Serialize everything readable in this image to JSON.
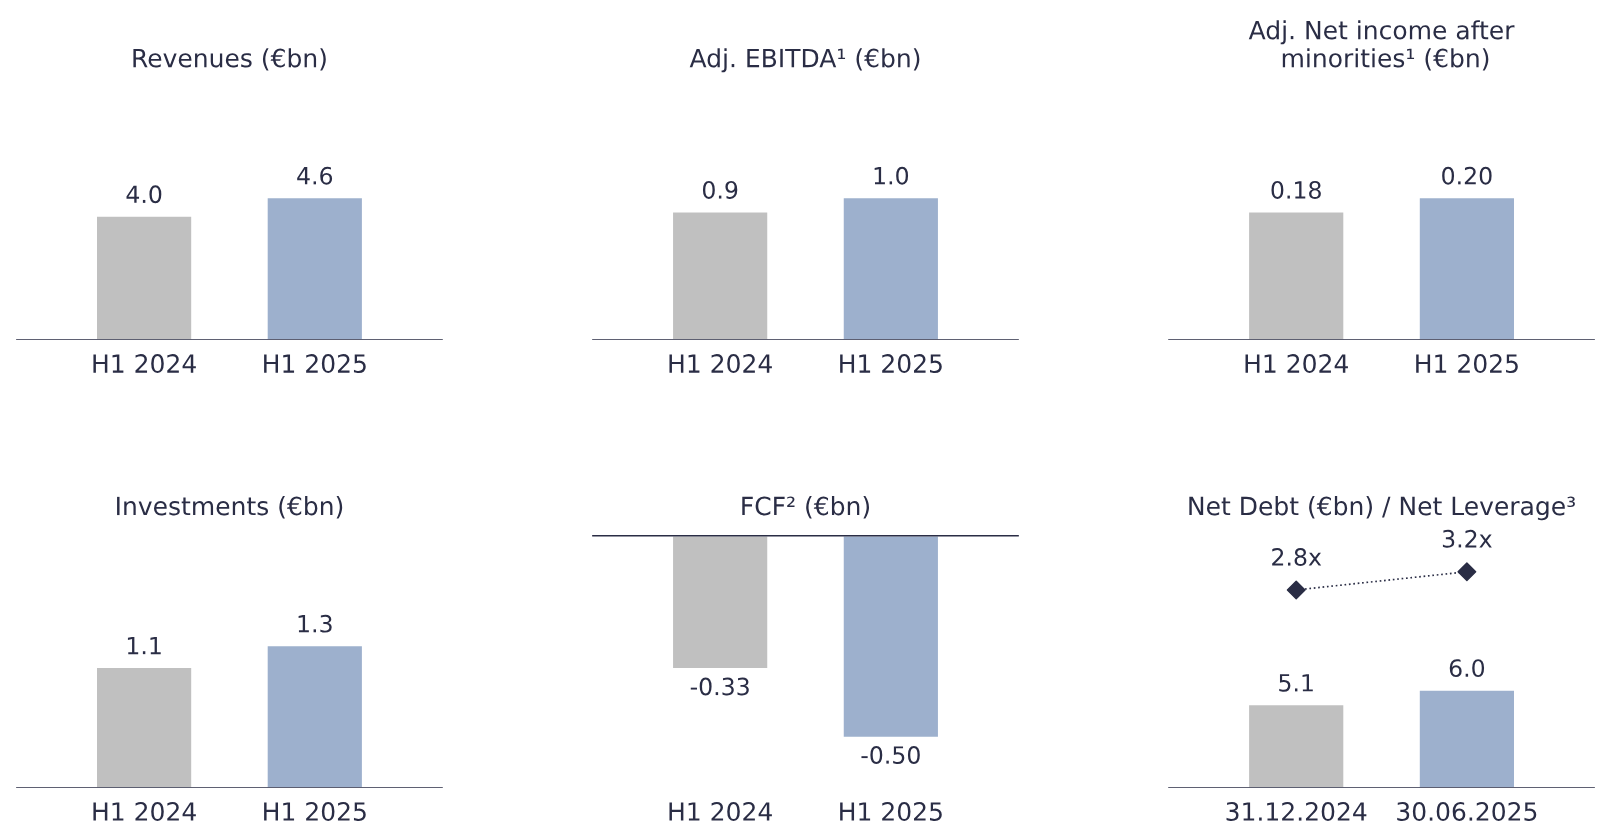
{
  "chart_data": [
    {
      "type": "bar",
      "title": "Revenues (€bn)",
      "categories": [
        "H1 2024",
        "H1 2025"
      ],
      "values": [
        4.0,
        4.6
      ],
      "value_labels": [
        "4.0",
        "4.6"
      ],
      "colors": [
        "#c0c0c0",
        "#9db0cd"
      ],
      "tick_labels": "x"
    },
    {
      "type": "bar",
      "title": "Adj. EBITDA¹ (€bn)",
      "categories": [
        "H1 2024",
        "H1 2025"
      ],
      "values": [
        0.9,
        1.0
      ],
      "value_labels": [
        "0.9",
        "1.0"
      ],
      "colors": [
        "#c0c0c0",
        "#9db0cd"
      ],
      "tick_labels": "x"
    },
    {
      "type": "bar",
      "title": "Adj. Net income after\n minorities¹ (€bn)",
      "categories": [
        "H1 2024",
        "H1 2025"
      ],
      "values": [
        0.18,
        0.2
      ],
      "value_labels": [
        "0.18",
        "0.20"
      ],
      "colors": [
        "#c0c0c0",
        "#9db0cd"
      ],
      "tick_labels": "x"
    },
    {
      "type": "bar",
      "title": "Investments (€bn)",
      "categories": [
        "H1 2024",
        "H1 2025"
      ],
      "values": [
        1.1,
        1.3
      ],
      "value_labels": [
        "1.1",
        "1.3"
      ],
      "colors": [
        "#c0c0c0",
        "#9db0cd"
      ],
      "tick_labels": "x"
    },
    {
      "type": "bar",
      "title": "FCF² (€bn)",
      "categories": [
        "H1 2024",
        "H1 2025"
      ],
      "values": [
        -0.33,
        -0.5
      ],
      "value_labels": [
        "-0.33",
        "-0.50"
      ],
      "colors": [
        "#c0c0c0",
        "#9db0cd"
      ],
      "tick_labels": "x"
    },
    {
      "type": "line",
      "title": "Net Debt (€bn) / Net Leverage³",
      "categories": [
        null,
        null
      ],
      "values": [
        2.8,
        3.2
      ],
      "value_labels": [
        "2.8x",
        "3.2x"
      ],
      "color": "#2a2d45",
      "marker": "diamond",
      "line_style": "dotted",
      "tick_labels": false
    },
    {
      "type": "bar",
      "categories": [
        "31.12.2024",
        "30.06.2025"
      ],
      "values": [
        5.1,
        6.0
      ],
      "value_labels": [
        "5.1",
        "6.0"
      ],
      "colors": [
        "#c0c0c0",
        "#9db0cd"
      ],
      "tick_labels": "x"
    }
  ]
}
